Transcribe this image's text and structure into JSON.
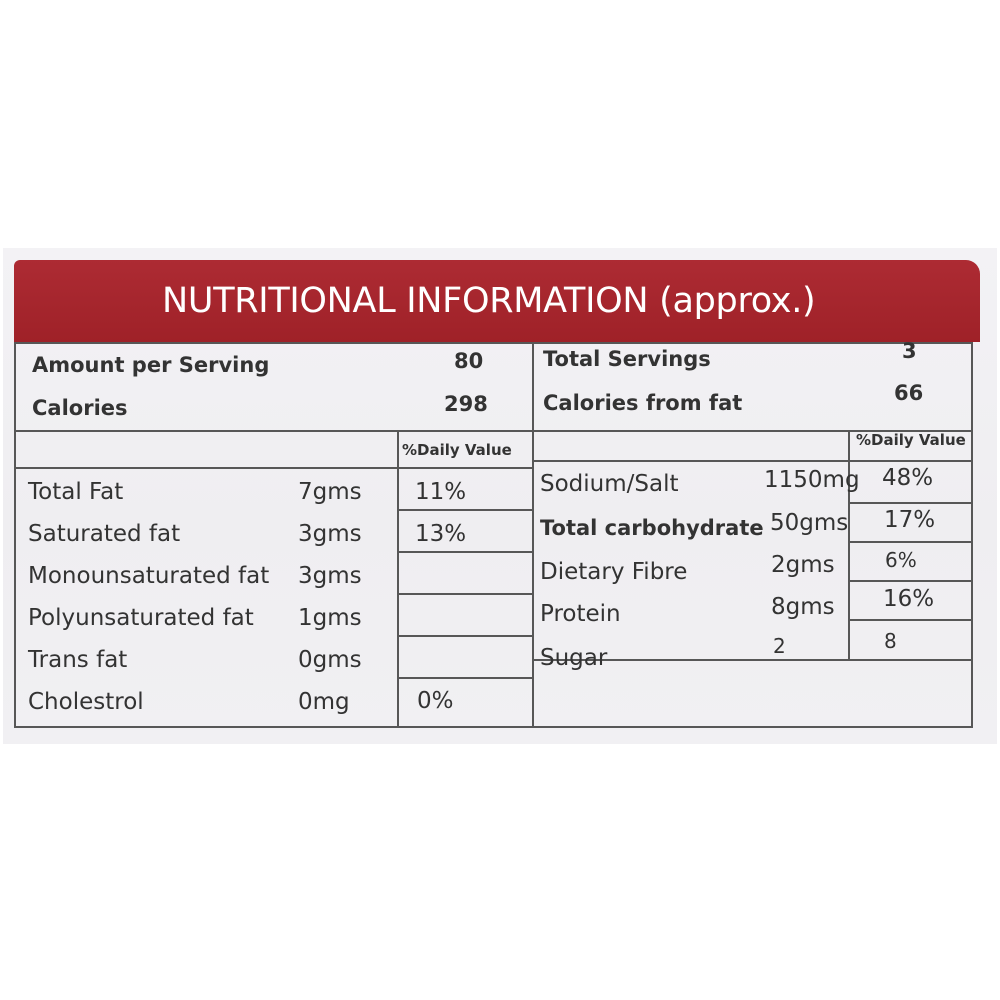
{
  "title": "NUTRITIONAL INFORMATION (approx.)",
  "summary": {
    "amount_per_serving_label": "Amount per Serving",
    "amount_per_serving_value": "80",
    "calories_label": "Calories",
    "calories_value": "298",
    "total_servings_label": "Total Servings",
    "total_servings_value": "3",
    "calories_from_fat_label": "Calories from fat",
    "calories_from_fat_value": "66"
  },
  "daily_value_header": "%Daily Value",
  "left_rows": [
    {
      "name": "Total Fat",
      "amount": "7gms",
      "dv": "11%"
    },
    {
      "name": "Saturated fat",
      "amount": "3gms",
      "dv": "13%"
    },
    {
      "name": "Monounsaturated fat",
      "amount": "3gms",
      "dv": ""
    },
    {
      "name": "Polyunsaturated fat",
      "amount": "1gms",
      "dv": ""
    },
    {
      "name": "Trans fat",
      "amount": "0gms",
      "dv": ""
    },
    {
      "name": "Cholestrol",
      "amount": "0mg",
      "dv": "0%"
    }
  ],
  "right_rows": [
    {
      "name": "Sodium/Salt",
      "amount": "1150mg",
      "dv": "48%"
    },
    {
      "name": "Total carbohydrate",
      "amount": "50gms",
      "dv": "17%"
    },
    {
      "name": "Dietary Fibre",
      "amount": "2gms",
      "dv": "6%"
    },
    {
      "name": "Protein",
      "amount": "8gms",
      "dv": "16%"
    },
    {
      "name": "Sugar",
      "amount": "2",
      "dv": "8"
    }
  ],
  "colors": {
    "header_bg": "#a3252c",
    "text": "#333333",
    "rule": "#575757"
  }
}
